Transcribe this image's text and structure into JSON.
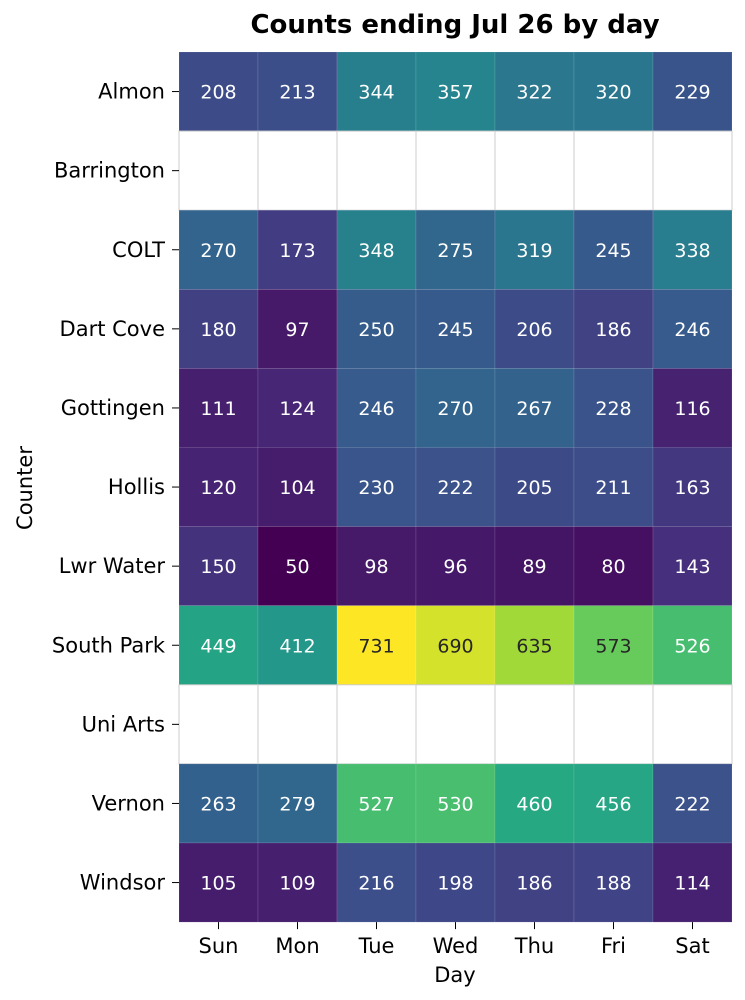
{
  "chart_data": {
    "type": "heatmap",
    "title": "Counts ending Jul 26 by day",
    "xlabel": "Day",
    "ylabel": "Counter",
    "colormap": "viridis",
    "color_range": [
      50,
      731
    ],
    "grid": true,
    "legend": "none",
    "x_categories": [
      "Sun",
      "Mon",
      "Tue",
      "Wed",
      "Thu",
      "Fri",
      "Sat"
    ],
    "y_categories": [
      "Almon",
      "Barrington",
      "COLT",
      "Dart Cove",
      "Gottingen",
      "Hollis",
      "Lwr Water",
      "South Park",
      "Uni Arts",
      "Vernon",
      "Windsor"
    ],
    "values": [
      [
        208,
        213,
        344,
        357,
        322,
        320,
        229
      ],
      [
        null,
        null,
        null,
        null,
        null,
        null,
        null
      ],
      [
        270,
        173,
        348,
        275,
        319,
        245,
        338
      ],
      [
        180,
        97,
        250,
        245,
        206,
        186,
        246
      ],
      [
        111,
        124,
        246,
        270,
        267,
        228,
        116
      ],
      [
        120,
        104,
        230,
        222,
        205,
        211,
        163
      ],
      [
        150,
        50,
        98,
        96,
        89,
        80,
        143
      ],
      [
        449,
        412,
        731,
        690,
        635,
        573,
        526
      ],
      [
        null,
        null,
        null,
        null,
        null,
        null,
        null
      ],
      [
        263,
        279,
        527,
        530,
        460,
        456,
        222
      ],
      [
        105,
        109,
        216,
        198,
        186,
        188,
        114
      ]
    ]
  }
}
